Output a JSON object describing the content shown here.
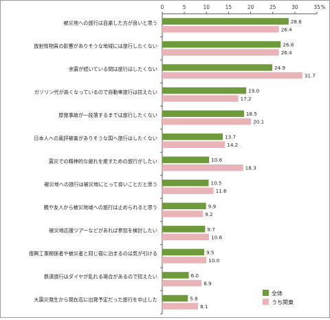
{
  "chart_data": {
    "type": "bar",
    "orientation": "horizontal",
    "unit": "%",
    "xlim": [
      0,
      35
    ],
    "ticks": [
      0,
      5,
      10,
      15,
      20,
      25,
      30,
      35
    ],
    "grid": false,
    "legend_position": "bottom-right",
    "categories": [
      "被災地への旅行は自粛した方が良いと思う",
      "放射性物質の影響がありそうな地域には旅行したくない",
      "余震が続いている間は旅行はしたくない",
      "ガソリン代が高くなっているので自動車旅行は控えたい",
      "原発事故が一段落するまでは旅行したくない",
      "日本人への風評被害がありそうな国へ旅行はしたくない",
      "震災での精神的な疲れを癒すための旅行がしたい",
      "被災地への旅行は被災地にとって良いことだと思う",
      "親や友人から被災地域への旅行は止められると思う",
      "被災地応援ツアーなどがあれば参加を検討したい",
      "復興工事関係者や被災者と同じ宿に泊まるのは気が引ける",
      "鉄道旅行はダイヤが乱れる場合があるので控えたい",
      "大震災発生から現在迄に出発予定だった旅行を中止した"
    ],
    "series": [
      {
        "name": "全体",
        "color": "#6e9a3c",
        "values": [
          28.6,
          26.8,
          24.9,
          19.0,
          18.5,
          13.7,
          10.6,
          10.5,
          9.9,
          9.7,
          9.5,
          6.0,
          5.8
        ]
      },
      {
        "name": "うち関東",
        "color": "#e8b4b8",
        "values": [
          26.4,
          26.4,
          31.7,
          17.2,
          20.1,
          14.2,
          18.3,
          11.6,
          9.2,
          10.6,
          10.0,
          8.9,
          8.1
        ]
      }
    ]
  }
}
